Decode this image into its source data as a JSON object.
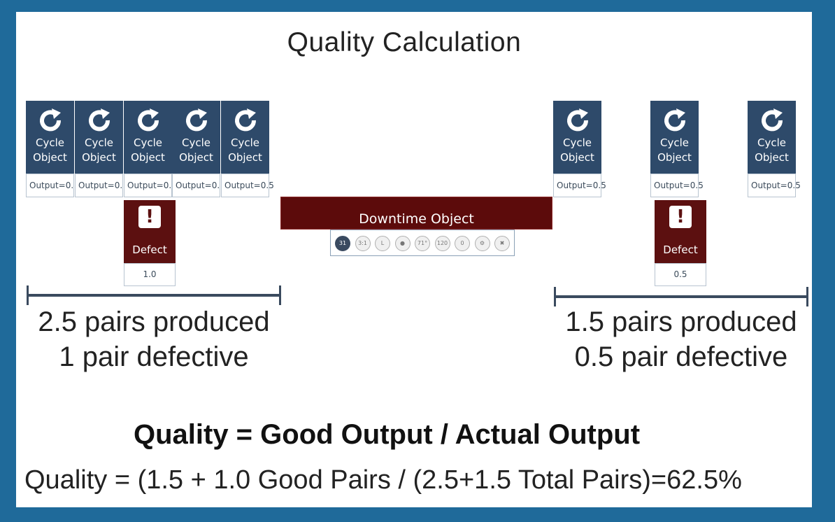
{
  "title": "Quality Calculation",
  "cycle_objects": [
    {
      "label_line1": "Cycle",
      "label_line2": "Object",
      "output": "Output=0."
    },
    {
      "label_line1": "Cycle",
      "label_line2": "Object",
      "output": "Output=0."
    },
    {
      "label_line1": "Cycle",
      "label_line2": "Object",
      "output": "Output=0."
    },
    {
      "label_line1": "Cycle",
      "label_line2": "Object",
      "output": "Output=0."
    },
    {
      "label_line1": "Cycle",
      "label_line2": "Object",
      "output": "Output=0.5"
    },
    {
      "label_line1": "Cycle",
      "label_line2": "Object",
      "output": "Output=0.5"
    },
    {
      "label_line1": "Cycle",
      "label_line2": "Object",
      "output": "Output=0.5"
    },
    {
      "label_line1": "Cycle",
      "label_line2": "Object",
      "output": "Output=0.5"
    }
  ],
  "defects": [
    {
      "label": "Defect",
      "icon": "!",
      "value": "1.0"
    },
    {
      "label": "Defect",
      "icon": "!",
      "value": "0.5"
    }
  ],
  "downtime": {
    "label": "Downtime Object",
    "toolbar_icons": [
      {
        "name": "badge-31",
        "text": "31"
      },
      {
        "name": "ratio",
        "text": "3:1"
      },
      {
        "name": "L",
        "text": "L"
      },
      {
        "name": "dot",
        "text": "●"
      },
      {
        "name": "71",
        "text": "71°"
      },
      {
        "name": "120",
        "text": "120"
      },
      {
        "name": "zero",
        "text": "0"
      },
      {
        "name": "gear",
        "text": "⚙"
      },
      {
        "name": "close",
        "text": "✖"
      }
    ]
  },
  "left_summary": {
    "line1": "2.5 pairs produced",
    "line2": "1 pair defective"
  },
  "right_summary": {
    "line1": "1.5 pairs produced",
    "line2": "0.5 pair defective"
  },
  "formula": "Quality = Good Output / Actual Output",
  "calculation": "Quality = (1.5 + 1.0 Good Pairs / (2.5+1.5 Total Pairs)=62.5%",
  "colors": {
    "frame": "#1f6a9a",
    "cycle_object": "#2e4a6a",
    "defect": "#5c1010",
    "downtime": "#5c0b0b"
  }
}
